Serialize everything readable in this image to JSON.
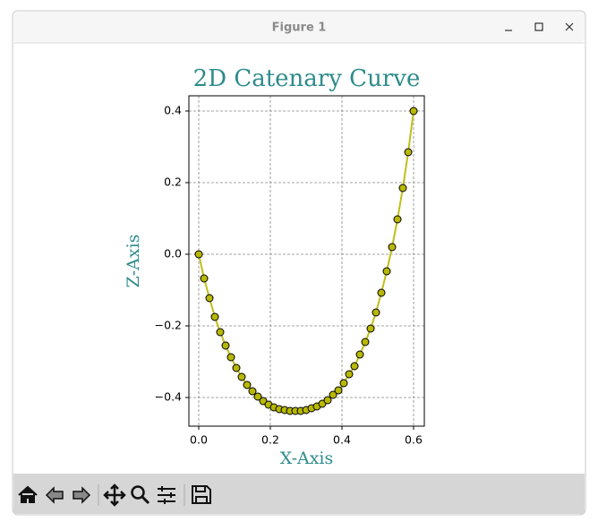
{
  "window": {
    "title": "Figure 1"
  },
  "chart_data": {
    "type": "line",
    "title": "2D Catenary Curve",
    "x_label": "X-Axis",
    "y_label": "Z-Axis",
    "x": [
      0,
      0.015,
      0.03,
      0.045,
      0.06,
      0.075,
      0.09,
      0.105,
      0.12,
      0.135,
      0.15,
      0.165,
      0.18,
      0.195,
      0.21,
      0.225,
      0.24,
      0.255,
      0.27,
      0.285,
      0.3,
      0.315,
      0.33,
      0.345,
      0.36,
      0.375,
      0.39,
      0.405,
      0.42,
      0.435,
      0.45,
      0.465,
      0.48,
      0.495,
      0.51,
      0.525,
      0.54,
      0.555,
      0.57,
      0.585,
      0.6
    ],
    "values": [
      0,
      -0.0675,
      -0.1225,
      -0.175,
      -0.2175,
      -0.255,
      -0.2875,
      -0.3175,
      -0.3425,
      -0.365,
      -0.3825,
      -0.3975,
      -0.41,
      -0.42,
      -0.4275,
      -0.4325,
      -0.435,
      -0.4375,
      -0.4375,
      -0.4375,
      -0.435,
      -0.43,
      -0.425,
      -0.4175,
      -0.4075,
      -0.3925,
      -0.38,
      -0.36,
      -0.335,
      -0.3125,
      -0.28,
      -0.245,
      -0.2075,
      -0.1625,
      -0.1075,
      -0.0475,
      0.02,
      0.0975,
      0.185,
      0.285,
      0.4
    ],
    "color": "#bfbf1a",
    "marker_color": "#b8b800",
    "marker_edge_color": "#000000",
    "title_color": "#2e8b8b",
    "xlim": [
      -0.0275,
      0.63
    ],
    "ylim": [
      -0.48,
      0.4425
    ],
    "xticks": [
      {
        "value": 0,
        "label": "0.0"
      },
      {
        "value": 0.2,
        "label": "0.2"
      },
      {
        "value": 0.4,
        "label": "0.4"
      },
      {
        "value": 0.6,
        "label": "0.6"
      }
    ],
    "yticks": [
      {
        "value": -0.4,
        "label": "−0.4"
      },
      {
        "value": -0.2,
        "label": "−0.2"
      },
      {
        "value": 0,
        "label": "0.0"
      },
      {
        "value": 0.2,
        "label": "0.2"
      },
      {
        "value": 0.4,
        "label": "0.4"
      }
    ],
    "grid": true
  }
}
